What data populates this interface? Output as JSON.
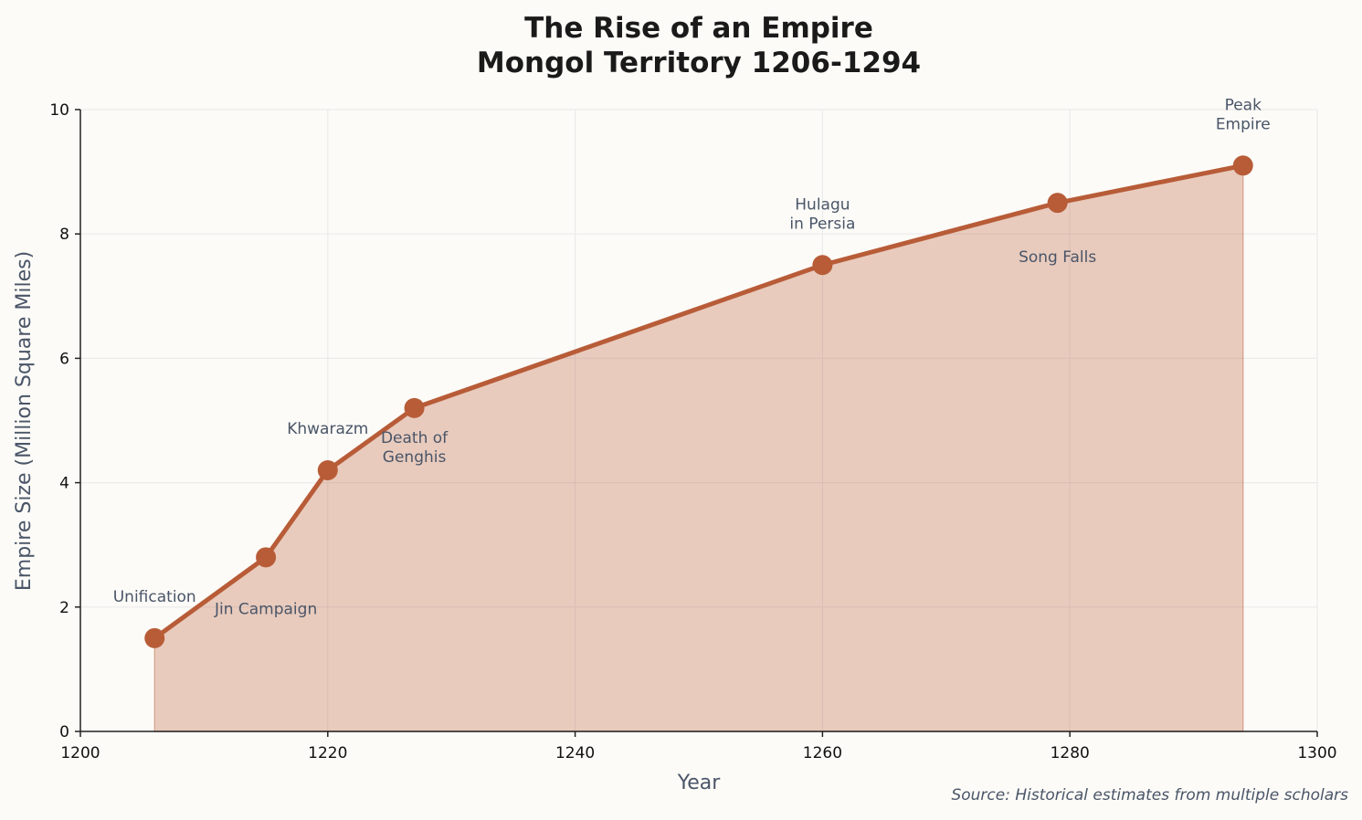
{
  "chart_data": {
    "type": "area",
    "title_line1": "The Rise of an Empire",
    "title_line2": "Mongol Territory 1206-1294",
    "xlabel": "Year",
    "ylabel": "Empire Size (Million Square Miles)",
    "xlim": [
      1200,
      1300
    ],
    "ylim": [
      0,
      10
    ],
    "xticks": [
      1200,
      1220,
      1240,
      1260,
      1280,
      1300
    ],
    "yticks": [
      0,
      2,
      4,
      6,
      8,
      10
    ],
    "grid": true,
    "x": [
      1206,
      1215,
      1220,
      1227,
      1260,
      1279,
      1294
    ],
    "y": [
      1.5,
      2.8,
      4.2,
      5.2,
      7.5,
      8.5,
      9.1
    ],
    "annotations": [
      {
        "x": 1206,
        "lines": [
          "Unification"
        ],
        "position": "above"
      },
      {
        "x": 1215,
        "lines": [
          "Jin Campaign"
        ],
        "position": "below"
      },
      {
        "x": 1220,
        "lines": [
          "Khwarazm"
        ],
        "position": "above"
      },
      {
        "x": 1227,
        "lines": [
          "Death of",
          "Genghis"
        ],
        "position": "below"
      },
      {
        "x": 1260,
        "lines": [
          "Hulagu",
          "in Persia"
        ],
        "position": "above"
      },
      {
        "x": 1279,
        "lines": [
          "Song Falls"
        ],
        "position": "below"
      },
      {
        "x": 1294,
        "lines": [
          "Peak",
          "Empire"
        ],
        "position": "above"
      }
    ],
    "source": "Source: Historical estimates from multiple scholars",
    "colors": {
      "line": "#b85c38",
      "fill": "#e8c9bc",
      "background": "#fcfbf7",
      "annotation": "#4a5568",
      "grid": "#ebebeb"
    }
  }
}
